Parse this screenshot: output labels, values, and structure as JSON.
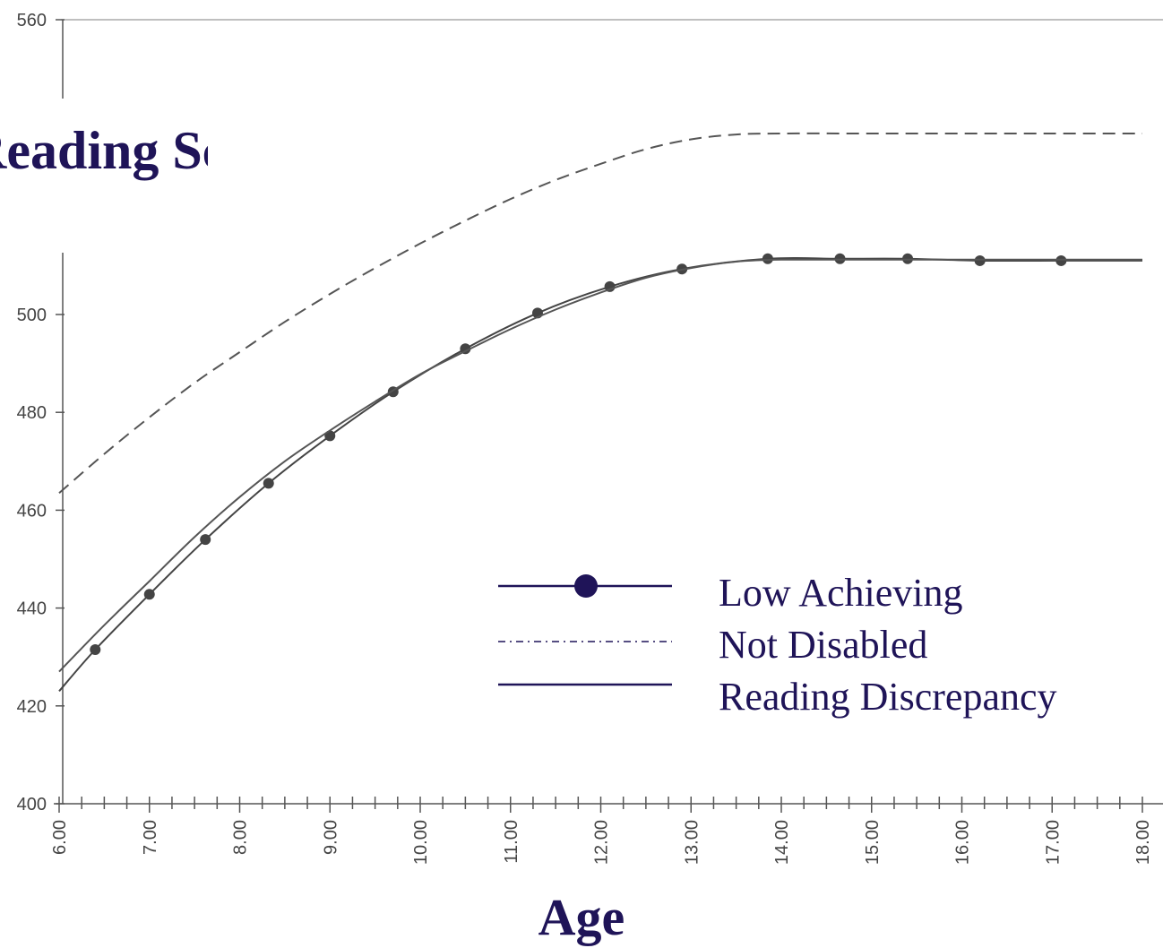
{
  "chart_data": {
    "type": "line",
    "title": "",
    "xlabel": "Age",
    "ylabel": "Reading Score",
    "xlim": [
      6.0,
      18.0
    ],
    "ylim": [
      400,
      560
    ],
    "yticks": [
      400,
      420,
      440,
      460,
      480,
      500,
      560
    ],
    "xticks": [
      "6.00",
      "7.00",
      "8.00",
      "9.00",
      "10.00",
      "11.00",
      "12.00",
      "13.00",
      "14.00",
      "15.00",
      "16.00",
      "17.00",
      "18.00"
    ],
    "grid": false,
    "legend_placement": "center-right",
    "series": [
      {
        "name": "Low Achieving",
        "style": "solid-with-markers",
        "color": "#444444",
        "x": [
          6.0,
          6.4,
          7.0,
          7.62,
          8.32,
          9.0,
          9.7,
          10.5,
          11.3,
          12.1,
          12.9,
          13.85,
          14.65,
          15.4,
          16.2,
          17.1,
          18.0
        ],
        "y": [
          423,
          431.5,
          442.8,
          454,
          465.5,
          475.2,
          484.2,
          493,
          500.3,
          505.7,
          509.3,
          511.4,
          511.4,
          511.4,
          511,
          511,
          511
        ]
      },
      {
        "name": "Not Disabled",
        "style": "dashed",
        "color": "#555555",
        "x": [
          6.0,
          6.5,
          7.0,
          7.5,
          8.0,
          8.5,
          9.0,
          9.5,
          10.0,
          10.5,
          11.0,
          11.5,
          12.0,
          12.5,
          13.0,
          13.5,
          14.0,
          15.0,
          16.0,
          17.0,
          18.0
        ],
        "y": [
          463.5,
          471.5,
          479,
          486,
          492.3,
          498.5,
          504.2,
          509.5,
          514.5,
          519.2,
          523.6,
          527.5,
          530.8,
          533.8,
          535.8,
          536.8,
          537,
          537,
          537,
          537,
          537
        ]
      },
      {
        "name": "Reading Discrepancy",
        "style": "solid",
        "color": "#555555",
        "x": [
          6.0,
          6.5,
          7.0,
          7.5,
          8.0,
          8.5,
          9.0,
          9.5,
          10.0,
          10.5,
          11.0,
          11.5,
          12.0,
          12.5,
          13.0,
          13.5,
          14.0,
          15.0,
          16.0,
          17.0,
          18.0
        ],
        "y": [
          427,
          436.5,
          445.5,
          454.5,
          462.7,
          470,
          476.3,
          482.2,
          487.8,
          492.5,
          497,
          501,
          504.5,
          507.5,
          509.5,
          510.8,
          511.2,
          511.2,
          511.2,
          511.2,
          511.2
        ]
      }
    ]
  },
  "legend": {
    "items": [
      {
        "label": "Low Achieving"
      },
      {
        "label": "Not Disabled"
      },
      {
        "label": "Reading Discrepancy"
      }
    ]
  },
  "colors": {
    "label_color": "#1f1458",
    "axis_color": "#555555",
    "marker_color": "#444444",
    "legend_marker_color": "#1f1458"
  }
}
